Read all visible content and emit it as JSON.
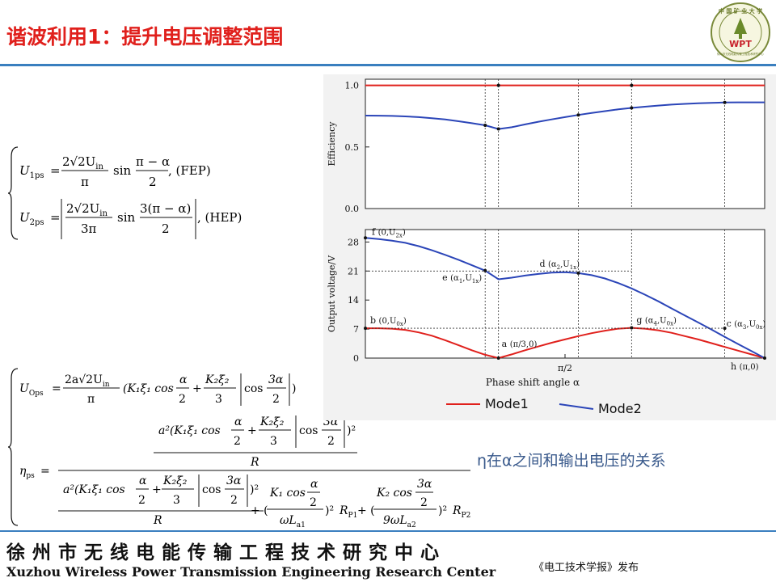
{
  "slide": {
    "title": "谐波利用1：提升电压调整范围",
    "logo": {
      "top_text": "中 国 矿 业 大 学",
      "badge": "WPT",
      "ring_text": "徐州市无线电能传输工程技术研究中心"
    },
    "footer_cn": "徐州市无线电能传输工程技术研究中心",
    "footer_en": "Xuzhou Wireless Power Transmission Engineering Research Center",
    "publisher": "《电工技术学报》发布",
    "caption": "η在α之间和输出电压的关系",
    "colors": {
      "title": "#e0201c",
      "rule": "#3a7fbf",
      "mode1": "#e0201c",
      "mode2": "#2b45b8",
      "caption": "#3a5a8c"
    }
  },
  "equations": {
    "u1ps_lhs": "U",
    "u1ps_sub": "1ps",
    "u1ps_coef": "2√2U",
    "u1ps_coef_sub": "in",
    "u1ps_den": "π",
    "u1ps_fn": "sin",
    "u1ps_arg_num": "π − α",
    "u1ps_arg_den": "2",
    "u1ps_tag": ", (FEP)",
    "u2ps_lhs": "U",
    "u2ps_sub": "2ps",
    "u2ps_coef": "2√2U",
    "u2ps_coef_sub": "in",
    "u2ps_den": "3π",
    "u2ps_fn": "sin",
    "u2ps_arg_num": "3(π − α)",
    "u2ps_arg_den": "2",
    "u2ps_tag": ", (HEP)",
    "uops_lhs": "U",
    "uops_sub": "Ops",
    "uops_num": "2a√2U",
    "uops_num_sub": "in",
    "uops_den": "π",
    "eta_lhs": "η",
    "eta_sub": "ps",
    "eq_sign": "=",
    "R": "R",
    "RP1": "R",
    "RP1_sub": "P1",
    "RP2": "R",
    "RP2_sub": "P2",
    "wLa1": "ωL",
    "wLa1_sub": "a1",
    "nwLa2": "9ωL",
    "nwLa2_sub": "a2"
  },
  "chart_data": [
    {
      "type": "line",
      "ylabel": "Efficiency",
      "ylim": [
        0,
        1.05
      ],
      "yticks": [
        {
          "v": 0.0,
          "label": "0.0"
        },
        {
          "v": 0.5,
          "label": "0.5"
        },
        {
          "v": 1.0,
          "label": "1.0"
        }
      ],
      "x": [
        0,
        0.1047,
        0.2094,
        0.3142,
        0.4189,
        0.5236,
        0.6283,
        0.733,
        0.8378,
        0.9425,
        1.0472,
        1.1519,
        1.2566,
        1.3614,
        1.4661,
        1.5708,
        1.6755,
        1.7802,
        1.885,
        1.9897,
        2.0944,
        2.1991,
        2.3038,
        2.4086,
        2.5133,
        2.618,
        2.7227,
        2.8274,
        2.9322,
        3.0369,
        3.1416
      ],
      "series": [
        {
          "name": "Mode1",
          "values": [
            1,
            1,
            1,
            1,
            1,
            1,
            1,
            1,
            1,
            1,
            1,
            1,
            1,
            1,
            1,
            1,
            1,
            1,
            1,
            1,
            1,
            1,
            1,
            1,
            1,
            1,
            1,
            1,
            1,
            1,
            1
          ]
        },
        {
          "name": "Mode2",
          "values": [
            0.755,
            0.754,
            0.752,
            0.748,
            0.742,
            0.734,
            0.723,
            0.709,
            0.693,
            0.676,
            0.646,
            0.66,
            0.683,
            0.705,
            0.724,
            0.742,
            0.76,
            0.776,
            0.791,
            0.805,
            0.817,
            0.827,
            0.836,
            0.844,
            0.85,
            0.855,
            0.858,
            0.861,
            0.862,
            0.862,
            0.862
          ]
        }
      ],
      "markers": [
        0.9425,
        1.0472,
        1.6755,
        2.0944,
        2.8274
      ]
    },
    {
      "type": "line",
      "ylabel": "Output voltage/V",
      "xlabel": "Phase shift angle α",
      "ylim": [
        0,
        31
      ],
      "yticks": [
        {
          "v": 0,
          "label": "0"
        },
        {
          "v": 7,
          "label": "7"
        },
        {
          "v": 14,
          "label": "14"
        },
        {
          "v": 21,
          "label": "21"
        },
        {
          "v": 28,
          "label": "28"
        }
      ],
      "xtick_label": "π/2",
      "x": [
        0,
        0.1047,
        0.2094,
        0.3142,
        0.4189,
        0.5236,
        0.6283,
        0.733,
        0.8378,
        0.9425,
        1.0472,
        1.1519,
        1.2566,
        1.3614,
        1.4661,
        1.5708,
        1.6755,
        1.7802,
        1.885,
        1.9897,
        2.0944,
        2.1991,
        2.3038,
        2.4086,
        2.5133,
        2.618,
        2.7227,
        2.8274,
        2.9322,
        3.0369,
        3.1416
      ],
      "series": [
        {
          "name": "Mode1",
          "values": [
            7.2,
            7.2,
            7.1,
            6.8,
            6.2,
            5.4,
            4.3,
            3.1,
            1.9,
            0.8,
            0.0,
            0.9,
            1.9,
            2.8,
            3.7,
            4.5,
            5.3,
            6.0,
            6.6,
            7.1,
            7.3,
            7.1,
            6.7,
            6.1,
            5.3,
            4.5,
            3.6,
            2.7,
            1.8,
            0.9,
            0.0
          ]
        },
        {
          "name": "Mode2",
          "values": [
            29.0,
            28.7,
            28.3,
            27.8,
            27.0,
            26.0,
            24.9,
            23.7,
            22.4,
            21.1,
            19.0,
            19.4,
            19.9,
            20.3,
            20.6,
            20.7,
            20.5,
            20.0,
            19.2,
            18.1,
            16.8,
            15.3,
            13.7,
            12.0,
            10.3,
            8.6,
            6.9,
            5.1,
            3.4,
            1.7,
            0.0
          ]
        }
      ],
      "annotations": [
        {
          "label": "f",
          "coord": "(0,U",
          "coord_sub": "2x",
          "coord_end": ")"
        },
        {
          "label": "e",
          "coord": "(α",
          "coord_sub": "1",
          "coord_mid": ",U",
          "coord_sub2": "1x",
          "coord_end": ")"
        },
        {
          "label": "d",
          "coord": "(α",
          "coord_sub": "2",
          "coord_mid": ",U",
          "coord_sub2": "1x",
          "coord_end": ")"
        },
        {
          "label": "b",
          "coord": "(0,U",
          "coord_sub": "0x",
          "coord_end": ")"
        },
        {
          "label": "a",
          "coord": "(π/3,0)"
        },
        {
          "label": "g",
          "coord": "(α",
          "coord_sub": "4",
          "coord_mid": ",U",
          "coord_sub2": "0x",
          "coord_end": ")"
        },
        {
          "label": "c",
          "coord": "(α",
          "coord_sub": "3",
          "coord_mid": ",U",
          "coord_sub2": "0x",
          "coord_end": ")"
        },
        {
          "label": "h",
          "coord": "(π,0)"
        }
      ]
    }
  ]
}
